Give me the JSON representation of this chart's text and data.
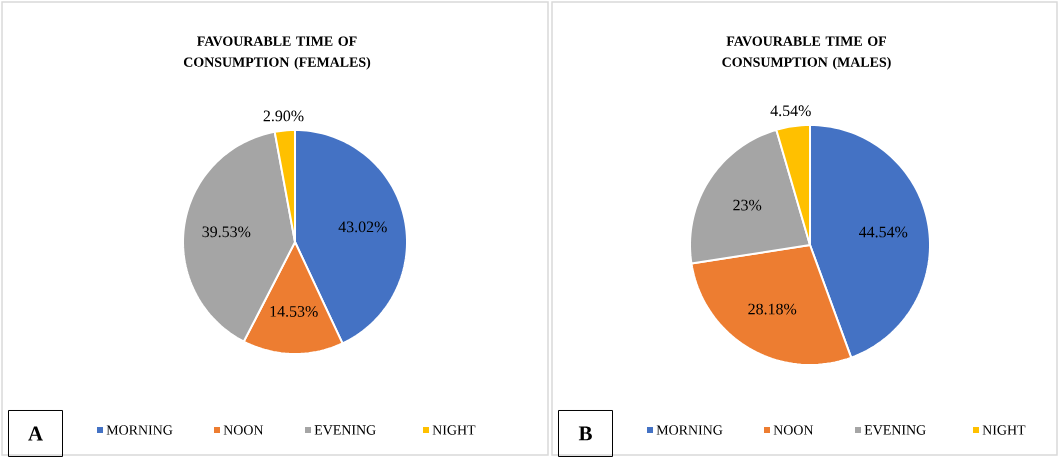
{
  "chart_data": [
    {
      "type": "pie",
      "title": "FAVOURABLE TIME OF CONSUMPTION (FEMALES)",
      "categories": [
        "MORNING",
        "NOON",
        "EVENING",
        "NIGHT"
      ],
      "values": [
        43.02,
        14.53,
        39.53,
        2.9
      ],
      "value_labels": [
        "43.02%",
        "14.53%",
        "39.53%",
        "2.90%"
      ],
      "colors": [
        "#4472c4",
        "#ed7d31",
        "#a5a5a5",
        "#ffc000"
      ],
      "legend": "bottom",
      "annotations": [
        "A"
      ]
    },
    {
      "type": "pie",
      "title": "FAVOURABLE TIME OF CONSUMPTION (MALES)",
      "categories": [
        "MORNING",
        "NOON",
        "EVENING",
        "NIGHT"
      ],
      "values": [
        44.54,
        28.18,
        23,
        4.54
      ],
      "value_labels": [
        "44.54%",
        "28.18%",
        "23%",
        "4.54%"
      ],
      "colors": [
        "#4472c4",
        "#ed7d31",
        "#a5a5a5",
        "#ffc000"
      ],
      "legend": "bottom",
      "annotations": [
        "B"
      ]
    }
  ]
}
